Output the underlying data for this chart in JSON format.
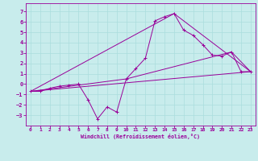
{
  "background_color": "#c8ecec",
  "line_color": "#990099",
  "grid_color": "#aadddd",
  "xlabel": "Windchill (Refroidissement éolien,°C)",
  "xlim": [
    -0.5,
    23.5
  ],
  "ylim": [
    -4.0,
    7.8
  ],
  "xticks": [
    0,
    1,
    2,
    3,
    4,
    5,
    6,
    7,
    8,
    9,
    10,
    11,
    12,
    13,
    14,
    15,
    16,
    17,
    18,
    19,
    20,
    21,
    22,
    23
  ],
  "yticks": [
    -3,
    -2,
    -1,
    0,
    1,
    2,
    3,
    4,
    5,
    6,
    7
  ],
  "curves": [
    {
      "x": [
        0,
        1,
        2,
        3,
        4,
        5,
        6,
        7,
        8,
        9,
        10,
        11,
        12,
        13,
        14,
        15,
        16,
        17,
        18,
        19,
        20,
        21,
        22,
        23
      ],
      "y": [
        -0.7,
        -0.7,
        -0.4,
        -0.2,
        -0.1,
        0.0,
        -1.5,
        -3.35,
        -2.2,
        -2.7,
        0.5,
        1.5,
        2.5,
        6.1,
        6.5,
        6.8,
        5.2,
        4.7,
        3.8,
        2.8,
        2.7,
        3.1,
        1.2,
        1.2
      ],
      "marker": "+"
    },
    {
      "x": [
        0,
        23
      ],
      "y": [
        -0.7,
        1.2
      ],
      "marker": null
    },
    {
      "x": [
        0,
        15,
        23
      ],
      "y": [
        -0.7,
        6.8,
        1.2
      ],
      "marker": null
    },
    {
      "x": [
        0,
        10,
        21,
        23
      ],
      "y": [
        -0.7,
        0.5,
        3.1,
        1.2
      ],
      "marker": null
    }
  ],
  "figsize": [
    3.2,
    2.0
  ],
  "dpi": 100
}
